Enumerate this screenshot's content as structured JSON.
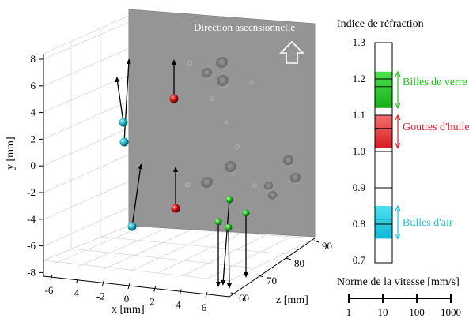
{
  "plot3d": {
    "ylabel": "y [mm]",
    "xlabel": "x [mm]",
    "zlabel": "z [mm]",
    "yticks": [
      "8",
      "6",
      "4",
      "2",
      "0",
      "-2",
      "-4",
      "-6",
      "-8"
    ],
    "xticks": [
      "-6",
      "-4",
      "-2",
      "0",
      "2",
      "4",
      "6"
    ],
    "zticks": [
      "60",
      "70",
      "80",
      "90"
    ],
    "image_caption": "Direction ascensionnelle",
    "direction_icon": "up-arrow-outline-icon"
  },
  "scale": {
    "title": "Indice de réfraction",
    "ticks": [
      "1.3",
      "1.2",
      "1.1",
      "1.0",
      "0.9",
      "0.8",
      "0.7"
    ],
    "bands": [
      {
        "label": "Billes de verre",
        "color": "#1fc21f",
        "from": 1.12,
        "to": 1.22
      },
      {
        "label": "Gouttes d'huile",
        "color": "#e0202a",
        "from": 1.01,
        "to": 1.1
      },
      {
        "label": "Bulles d'air",
        "color": "#1fc3dd",
        "from": 0.76,
        "to": 0.85
      }
    ]
  },
  "speed": {
    "title": "Norme de la vitesse [mm/s]",
    "ticks": [
      "1",
      "10",
      "100",
      "1000"
    ]
  },
  "colors": {
    "glass": "#22b822",
    "oil": "#cc1111",
    "air": "#1aaec0"
  }
}
